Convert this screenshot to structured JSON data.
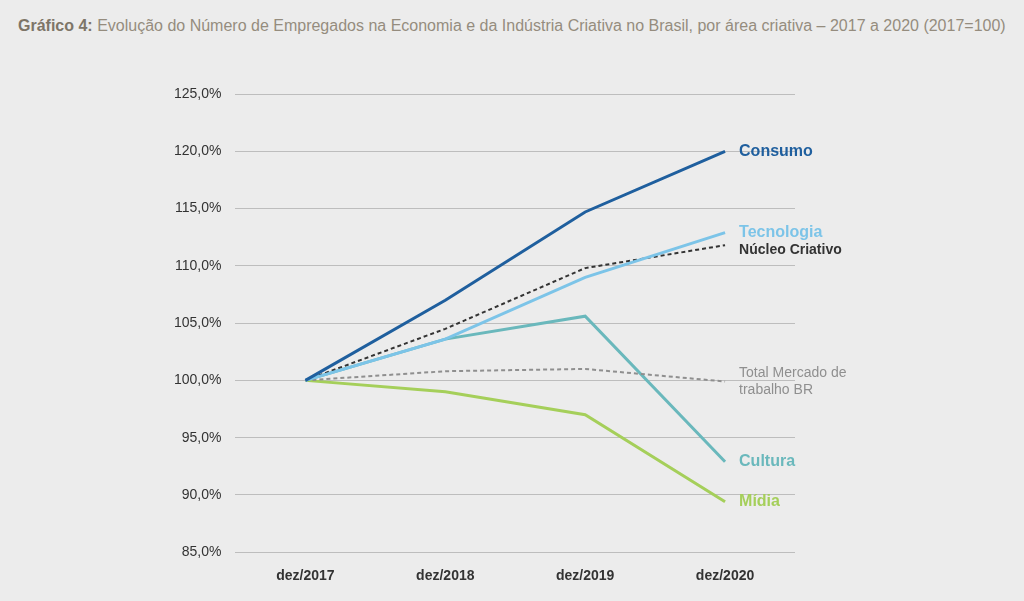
{
  "chart_data": {
    "type": "line",
    "title": "Gráfico 4: Evolução do Número de Empregados na Economia e da Indústria Criativa no Brasil, por área criativa – 2017 a 2020 (2017=100)",
    "categories": [
      "dez/2017",
      "dez/2018",
      "dez/2019",
      "dez/2020"
    ],
    "series": [
      {
        "name": "Consumo",
        "color": "#1f5f9e",
        "line_style": "solid",
        "values": [
          100.0,
          107.0,
          114.7,
          120.0
        ]
      },
      {
        "name": "Tecnologia",
        "color": "#7cc4e8",
        "line_style": "solid",
        "values": [
          100.0,
          103.6,
          109.0,
          112.9
        ]
      },
      {
        "name": "Núcleo Criativo",
        "color": "#333333",
        "line_style": "dashed",
        "values": [
          100.0,
          104.5,
          109.8,
          111.8
        ]
      },
      {
        "name": "Total Mercado de trabalho BR",
        "color": "#8f8f8f",
        "line_style": "dashed",
        "values": [
          100.0,
          100.8,
          101.0,
          99.9
        ]
      },
      {
        "name": "Cultura",
        "color": "#6ab8bc",
        "line_style": "solid",
        "values": [
          100.0,
          103.6,
          105.6,
          92.9
        ]
      },
      {
        "name": "Mídia",
        "color": "#a5cf5a",
        "line_style": "solid",
        "values": [
          100.0,
          99.0,
          97.0,
          89.4
        ]
      }
    ],
    "ylim": [
      85,
      125
    ],
    "yticks": [
      {
        "value": 85,
        "label": "85,0%"
      },
      {
        "value": 90,
        "label": "90,0%"
      },
      {
        "value": 95,
        "label": "95,0%"
      },
      {
        "value": 100,
        "label": "100,0%"
      },
      {
        "value": 105,
        "label": "105,0%"
      },
      {
        "value": 110,
        "label": "110,0%"
      },
      {
        "value": 115,
        "label": "115,0%"
      },
      {
        "value": 120,
        "label": "120,0%"
      },
      {
        "value": 125,
        "label": "125,0%"
      }
    ],
    "grid": true
  }
}
